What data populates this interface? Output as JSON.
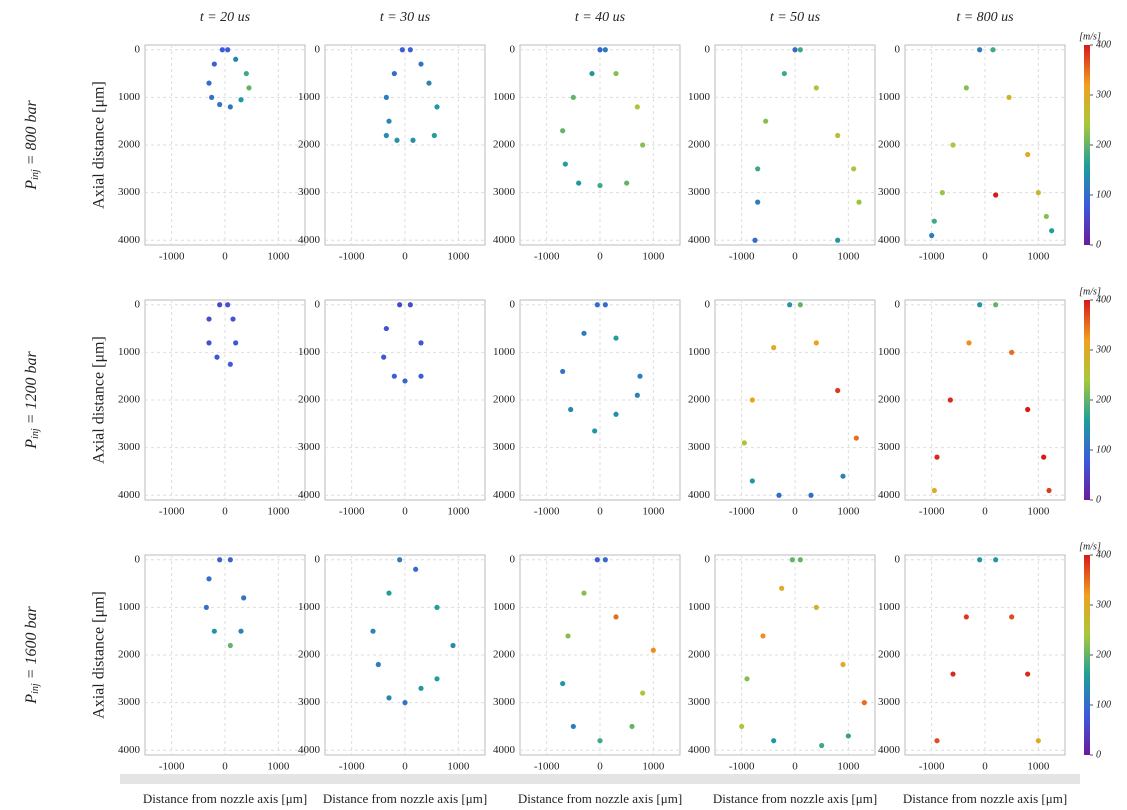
{
  "column_titles": [
    "t = 20 us",
    "t = 30 us",
    "t = 40 us",
    "t = 50 us",
    "t = 800 us"
  ],
  "row_labels": [
    {
      "var": "P",
      "sub": "inj",
      "rest": "= 800 bar"
    },
    {
      "var": "P",
      "sub": "inj",
      "rest": "= 1200 bar"
    },
    {
      "var": "P",
      "sub": "inj",
      "rest": "= 1600 bar"
    }
  ],
  "y_label": "Axial distance [μm]",
  "x_label": "Distance from nozzle axis [μm]",
  "colorbar": {
    "unit": "[m/s]",
    "lim": [
      0,
      400
    ],
    "ticks": [
      0,
      100,
      200,
      300,
      400
    ]
  },
  "chart_data": [
    {
      "type": "scatter",
      "x": [
        -50,
        -200,
        -300,
        -250,
        -100,
        100,
        300,
        450,
        400,
        200,
        50
      ],
      "y": [
        0,
        300,
        700,
        1000,
        1150,
        1200,
        1050,
        800,
        500,
        200,
        0
      ],
      "values": [
        80,
        90,
        100,
        110,
        110,
        110,
        150,
        200,
        180,
        130,
        80
      ],
      "xlim": [
        -1500,
        1500
      ],
      "ylim": [
        4100,
        -100
      ],
      "xticks": [
        -1000,
        0,
        1000
      ],
      "yticks": [
        0,
        1000,
        2000,
        3000,
        4000
      ],
      "grid": true
    },
    {
      "type": "scatter",
      "x": [
        -50,
        -200,
        -350,
        -300,
        -350,
        -150,
        150,
        550,
        600,
        450,
        300,
        100
      ],
      "y": [
        0,
        500,
        1000,
        1500,
        1800,
        1900,
        1900,
        1800,
        1200,
        700,
        300,
        0
      ],
      "values": [
        80,
        100,
        120,
        130,
        140,
        150,
        140,
        160,
        150,
        130,
        110,
        90
      ],
      "xlim": [
        -1500,
        1500
      ],
      "ylim": [
        4100,
        -100
      ],
      "xticks": [
        -1000,
        0,
        1000
      ],
      "yticks": [
        0,
        1000,
        2000,
        3000,
        4000
      ],
      "grid": true
    },
    {
      "type": "scatter",
      "x": [
        0,
        -150,
        -500,
        -700,
        -650,
        -400,
        0,
        500,
        800,
        700,
        300,
        100
      ],
      "y": [
        0,
        500,
        1000,
        1700,
        2400,
        2800,
        2850,
        2800,
        2000,
        1200,
        500,
        0
      ],
      "values": [
        90,
        150,
        200,
        200,
        160,
        150,
        180,
        200,
        220,
        240,
        220,
        120
      ],
      "xlim": [
        -1500,
        1500
      ],
      "ylim": [
        4100,
        -100
      ],
      "xticks": [
        -1000,
        0,
        1000
      ],
      "yticks": [
        0,
        1000,
        2000,
        3000,
        4000
      ],
      "grid": true
    },
    {
      "type": "scatter",
      "x": [
        0,
        -200,
        -550,
        -700,
        -700,
        -750,
        100,
        400,
        800,
        1100,
        1200,
        800
      ],
      "y": [
        0,
        500,
        1500,
        2500,
        3200,
        4000,
        0,
        800,
        1800,
        2500,
        3200,
        4000
      ],
      "values": [
        100,
        180,
        220,
        180,
        120,
        100,
        180,
        240,
        260,
        250,
        230,
        150
      ],
      "xlim": [
        -1500,
        1500
      ],
      "ylim": [
        4100,
        -100
      ],
      "xticks": [
        -1000,
        0,
        1000
      ],
      "yticks": [
        0,
        1000,
        2000,
        3000,
        4000
      ],
      "grid": true
    },
    {
      "type": "scatter",
      "x": [
        -100,
        -350,
        -600,
        -800,
        -950,
        -1000,
        150,
        450,
        800,
        1000,
        1150,
        1250,
        200
      ],
      "y": [
        0,
        800,
        2000,
        3000,
        3600,
        3900,
        0,
        1000,
        2200,
        3000,
        3500,
        3800,
        3050
      ],
      "values": [
        120,
        220,
        250,
        230,
        180,
        120,
        180,
        280,
        300,
        270,
        220,
        160,
        400
      ],
      "xlim": [
        -1500,
        1500
      ],
      "ylim": [
        4100,
        -100
      ],
      "xticks": [
        -1000,
        0,
        1000
      ],
      "yticks": [
        0,
        1000,
        2000,
        3000,
        4000
      ],
      "grid": true
    },
    {
      "type": "scatter",
      "x": [
        -100,
        -300,
        -300,
        -150,
        100,
        200,
        150,
        50
      ],
      "y": [
        0,
        300,
        800,
        1100,
        1250,
        800,
        300,
        0
      ],
      "values": [
        60,
        65,
        70,
        75,
        80,
        75,
        70,
        65
      ],
      "xlim": [
        -1500,
        1500
      ],
      "ylim": [
        4100,
        -100
      ],
      "xticks": [
        -1000,
        0,
        1000
      ],
      "yticks": [
        0,
        1000,
        2000,
        3000,
        4000
      ],
      "grid": true
    },
    {
      "type": "scatter",
      "x": [
        -100,
        -350,
        -400,
        -200,
        0,
        300,
        300,
        100
      ],
      "y": [
        0,
        500,
        1100,
        1500,
        1600,
        1500,
        800,
        0
      ],
      "values": [
        60,
        70,
        75,
        85,
        90,
        85,
        75,
        65
      ],
      "xlim": [
        -1500,
        1500
      ],
      "ylim": [
        4100,
        -100
      ],
      "xticks": [
        -1000,
        0,
        1000
      ],
      "yticks": [
        0,
        1000,
        2000,
        3000,
        4000
      ],
      "grid": true
    },
    {
      "type": "scatter",
      "x": [
        -50,
        -300,
        -700,
        -550,
        -100,
        300,
        700,
        750,
        300,
        100
      ],
      "y": [
        0,
        600,
        1400,
        2200,
        2650,
        2300,
        1900,
        1500,
        700,
        0
      ],
      "values": [
        100,
        120,
        110,
        130,
        150,
        140,
        130,
        120,
        160,
        100
      ],
      "xlim": [
        -1500,
        1500
      ],
      "ylim": [
        4100,
        -100
      ],
      "xticks": [
        -1000,
        0,
        1000
      ],
      "yticks": [
        0,
        1000,
        2000,
        3000,
        4000
      ],
      "grid": true
    },
    {
      "type": "scatter",
      "x": [
        -100,
        -400,
        -800,
        -950,
        -800,
        -300,
        300,
        900,
        1150,
        800,
        400,
        100
      ],
      "y": [
        0,
        900,
        2000,
        2900,
        3700,
        4000,
        4000,
        3600,
        2800,
        1800,
        800,
        0
      ],
      "values": [
        150,
        300,
        320,
        250,
        150,
        100,
        100,
        130,
        350,
        380,
        320,
        200
      ],
      "xlim": [
        -1500,
        1500
      ],
      "ylim": [
        4100,
        -100
      ],
      "xticks": [
        -1000,
        0,
        1000
      ],
      "yticks": [
        0,
        1000,
        2000,
        3000,
        4000
      ],
      "grid": true
    },
    {
      "type": "scatter",
      "x": [
        -100,
        -300,
        -650,
        -900,
        -950,
        200,
        500,
        800,
        1100,
        1200
      ],
      "y": [
        0,
        800,
        2000,
        3200,
        3900,
        0,
        1000,
        2200,
        3200,
        3900
      ],
      "values": [
        150,
        330,
        390,
        390,
        300,
        200,
        350,
        400,
        400,
        380
      ],
      "xlim": [
        -1500,
        1500
      ],
      "ylim": [
        4100,
        -100
      ],
      "xticks": [
        -1000,
        0,
        1000
      ],
      "yticks": [
        0,
        1000,
        2000,
        3000,
        4000
      ],
      "grid": true
    },
    {
      "type": "scatter",
      "x": [
        -100,
        -300,
        -350,
        -200,
        100,
        300,
        350,
        100
      ],
      "y": [
        0,
        400,
        1000,
        1500,
        1800,
        1500,
        800,
        0
      ],
      "values": [
        90,
        100,
        110,
        150,
        200,
        130,
        110,
        90
      ],
      "xlim": [
        -1500,
        1500
      ],
      "ylim": [
        4100,
        -100
      ],
      "xticks": [
        -1000,
        0,
        1000
      ],
      "yticks": [
        0,
        1000,
        2000,
        3000,
        4000
      ],
      "grid": true
    },
    {
      "type": "scatter",
      "x": [
        -100,
        -300,
        -600,
        -500,
        -300,
        0,
        300,
        600,
        900,
        600,
        200
      ],
      "y": [
        0,
        700,
        1500,
        2200,
        2900,
        3000,
        2700,
        2500,
        1800,
        1000,
        200
      ],
      "values": [
        120,
        160,
        130,
        120,
        130,
        110,
        150,
        160,
        140,
        160,
        100
      ],
      "xlim": [
        -1500,
        1500
      ],
      "ylim": [
        4100,
        -100
      ],
      "xticks": [
        -1000,
        0,
        1000
      ],
      "yticks": [
        0,
        1000,
        2000,
        3000,
        4000
      ],
      "grid": true
    },
    {
      "type": "scatter",
      "x": [
        -50,
        -300,
        -600,
        -700,
        -500,
        0,
        600,
        800,
        1000,
        300,
        100
      ],
      "y": [
        0,
        700,
        1600,
        2600,
        3500,
        3800,
        3500,
        2800,
        1900,
        1200,
        0
      ],
      "values": [
        80,
        220,
        220,
        150,
        120,
        180,
        200,
        240,
        330,
        350,
        100
      ],
      "xlim": [
        -1500,
        1500
      ],
      "ylim": [
        4100,
        -100
      ],
      "xticks": [
        -1000,
        0,
        1000
      ],
      "yticks": [
        0,
        1000,
        2000,
        3000,
        4000
      ],
      "grid": true
    },
    {
      "type": "scatter",
      "x": [
        -50,
        -250,
        -600,
        -900,
        -1000,
        -400,
        500,
        1000,
        1300,
        900,
        400,
        100
      ],
      "y": [
        0,
        600,
        1600,
        2500,
        3500,
        3800,
        3900,
        3700,
        3000,
        2200,
        1000,
        0
      ],
      "values": [
        200,
        300,
        330,
        220,
        250,
        150,
        180,
        170,
        350,
        300,
        280,
        200
      ],
      "xlim": [
        -1500,
        1500
      ],
      "ylim": [
        4100,
        -100
      ],
      "xticks": [
        -1000,
        0,
        1000
      ],
      "yticks": [
        0,
        1000,
        2000,
        3000,
        4000
      ],
      "grid": true
    },
    {
      "type": "scatter",
      "x": [
        -100,
        -350,
        -600,
        -900,
        200,
        500,
        800,
        1000
      ],
      "y": [
        0,
        1200,
        2400,
        3800,
        0,
        1200,
        2400,
        3800
      ],
      "values": [
        150,
        380,
        390,
        370,
        150,
        370,
        390,
        300
      ],
      "xlim": [
        -1500,
        1500
      ],
      "ylim": [
        4100,
        -100
      ],
      "xticks": [
        -1000,
        0,
        1000
      ],
      "yticks": [
        0,
        1000,
        2000,
        3000,
        4000
      ],
      "grid": true
    }
  ]
}
